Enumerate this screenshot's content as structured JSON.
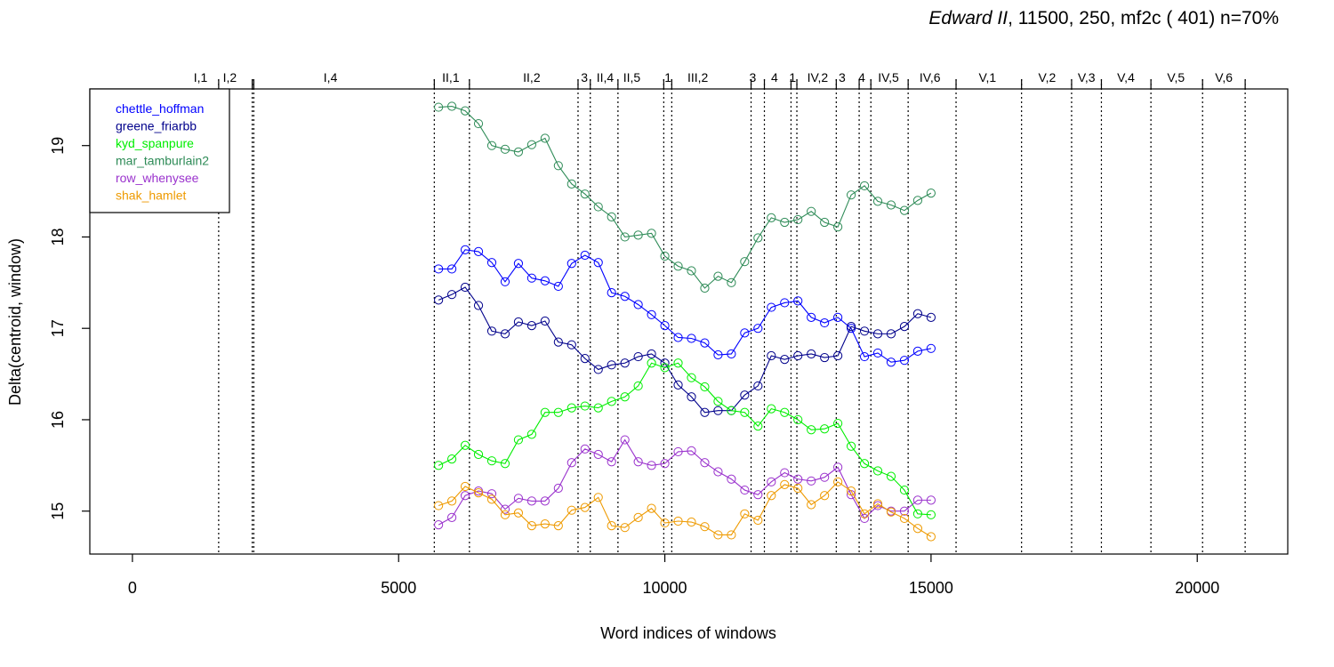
{
  "chart_data": {
    "type": "line",
    "title_italic": "Edward II",
    "title_rest": ", 11500, 250, mf2c ( 401)   n=70%",
    "xlabel": "Word indices of windows",
    "ylabel": "Delta(centroid, window)",
    "xlim": [
      -800,
      21700
    ],
    "ylim": [
      14.53,
      19.62
    ],
    "xticks": [
      0,
      5000,
      10000,
      15000,
      20000
    ],
    "yticks": [
      15,
      16,
      17,
      18,
      19
    ],
    "legend_position": "top-left",
    "scene_boundaries": [
      1620,
      2250,
      2280,
      5670,
      6330,
      8370,
      8600,
      9120,
      9980,
      10130,
      11620,
      11870,
      12370,
      12480,
      13220,
      13650,
      13870,
      14570,
      15470,
      16700,
      17640,
      18200,
      19130,
      20100,
      20900
    ],
    "scene_labels": [
      {
        "label": "I,1",
        "x": 1280
      },
      {
        "label": "I,2",
        "x": 1830
      },
      {
        "label": "I,4",
        "x": 3720
      },
      {
        "label": "II,1",
        "x": 5980
      },
      {
        "label": "II,2",
        "x": 7500
      },
      {
        "label": "3",
        "x": 8490
      },
      {
        "label": "II,4",
        "x": 8880
      },
      {
        "label": "II,5",
        "x": 9380
      },
      {
        "label": "1",
        "x": 10060
      },
      {
        "label": "III,2",
        "x": 10620
      },
      {
        "label": "3",
        "x": 11650
      },
      {
        "label": "4",
        "x": 12060
      },
      {
        "label": "1",
        "x": 12400
      },
      {
        "label": "IV,2",
        "x": 12870
      },
      {
        "label": "3",
        "x": 13330
      },
      {
        "label": "4",
        "x": 13700
      },
      {
        "label": "IV,5",
        "x": 14200
      },
      {
        "label": "IV,6",
        "x": 14980
      },
      {
        "label": "V,1",
        "x": 16060
      },
      {
        "label": "V,2",
        "x": 17180
      },
      {
        "label": "V,3",
        "x": 17920
      },
      {
        "label": "V,4",
        "x": 18660
      },
      {
        "label": "V,5",
        "x": 19600
      },
      {
        "label": "V,6",
        "x": 20500
      }
    ],
    "x": [
      5750,
      6000,
      6250,
      6500,
      6750,
      7000,
      7250,
      7500,
      7750,
      8000,
      8250,
      8500,
      8750,
      9000,
      9250,
      9500,
      9750,
      10000,
      10250,
      10500,
      10750,
      11000,
      11250,
      11500,
      11750,
      12000,
      12250,
      12500,
      12750,
      13000,
      13250,
      13500,
      13750,
      14000,
      14250,
      14500,
      14750,
      15000
    ],
    "series": [
      {
        "name": "chettle_hoffman",
        "color": "#0000FF",
        "values": [
          17.65,
          17.65,
          17.86,
          17.84,
          17.72,
          17.51,
          17.71,
          17.55,
          17.52,
          17.46,
          17.71,
          17.8,
          17.72,
          17.39,
          17.35,
          17.26,
          17.15,
          17.03,
          16.9,
          16.89,
          16.84,
          16.71,
          16.72,
          16.95,
          17.0,
          17.23,
          17.28,
          17.3,
          17.12,
          17.06,
          17.12,
          17.0,
          16.69,
          16.73,
          16.63,
          16.65,
          16.75,
          16.78
        ]
      },
      {
        "name": "greene_friarbb",
        "color": "#00008B",
        "values": [
          17.31,
          17.37,
          17.45,
          17.25,
          16.97,
          16.94,
          17.07,
          17.03,
          17.08,
          16.85,
          16.82,
          16.67,
          16.55,
          16.6,
          16.62,
          16.69,
          16.72,
          16.62,
          16.38,
          16.25,
          16.08,
          16.1,
          16.1,
          16.27,
          16.37,
          16.7,
          16.66,
          16.7,
          16.72,
          16.68,
          16.7,
          17.02,
          16.97,
          16.94,
          16.94,
          17.02,
          17.16,
          17.12
        ]
      },
      {
        "name": "kyd_spanpure",
        "color": "#00EE00",
        "values": [
          15.5,
          15.57,
          15.72,
          15.62,
          15.55,
          15.52,
          15.78,
          15.84,
          16.08,
          16.08,
          16.13,
          16.15,
          16.13,
          16.2,
          16.25,
          16.37,
          16.62,
          16.57,
          16.62,
          16.46,
          16.36,
          16.2,
          16.1,
          16.08,
          15.93,
          16.12,
          16.08,
          16.0,
          15.89,
          15.9,
          15.96,
          15.71,
          15.52,
          15.44,
          15.38,
          15.23,
          14.97,
          14.96
        ]
      },
      {
        "name": "mar_tamburlain2",
        "color": "#2E8B57",
        "values": [
          19.42,
          19.43,
          19.38,
          19.24,
          19.0,
          18.96,
          18.93,
          19.01,
          19.08,
          18.78,
          18.58,
          18.47,
          18.33,
          18.22,
          18.0,
          18.02,
          18.04,
          17.79,
          17.68,
          17.63,
          17.44,
          17.57,
          17.5,
          17.73,
          17.99,
          18.21,
          18.16,
          18.19,
          18.28,
          18.16,
          18.11,
          18.46,
          18.56,
          18.39,
          18.35,
          18.29,
          18.4,
          18.48
        ]
      },
      {
        "name": "row_whenysee",
        "color": "#9A32CD",
        "values": [
          14.85,
          14.93,
          15.17,
          15.22,
          15.19,
          15.02,
          15.14,
          15.11,
          15.11,
          15.25,
          15.53,
          15.68,
          15.62,
          15.54,
          15.78,
          15.54,
          15.5,
          15.52,
          15.65,
          15.66,
          15.53,
          15.43,
          15.35,
          15.23,
          15.18,
          15.32,
          15.42,
          15.35,
          15.33,
          15.37,
          15.48,
          15.18,
          14.92,
          15.06,
          15.0,
          15.0,
          15.12,
          15.12
        ]
      },
      {
        "name": "shak_hamlet",
        "color": "#EE9A00",
        "values": [
          15.06,
          15.11,
          15.27,
          15.2,
          15.13,
          14.96,
          14.98,
          14.84,
          14.86,
          14.84,
          15.01,
          15.04,
          15.15,
          14.84,
          14.82,
          14.93,
          15.03,
          14.87,
          14.89,
          14.88,
          14.83,
          14.74,
          14.74,
          14.97,
          14.9,
          15.17,
          15.29,
          15.25,
          15.07,
          15.17,
          15.32,
          15.22,
          14.97,
          15.08,
          14.99,
          14.92,
          14.81,
          14.72
        ]
      }
    ]
  }
}
